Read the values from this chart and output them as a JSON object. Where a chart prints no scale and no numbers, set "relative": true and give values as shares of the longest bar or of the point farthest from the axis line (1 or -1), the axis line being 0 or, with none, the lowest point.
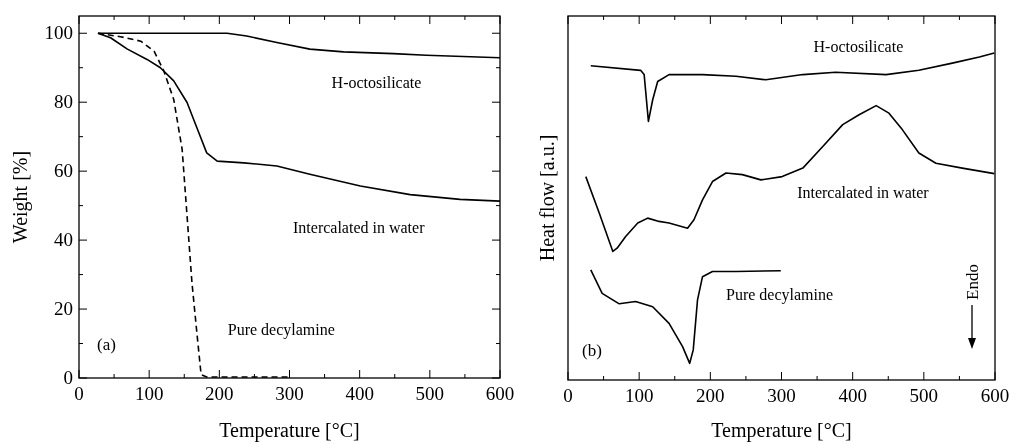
{
  "chart_data": [
    {
      "type": "line",
      "xlabel": "Temperature [°C]",
      "ylabel": "Weight [%]",
      "xlim": [
        0,
        600
      ],
      "ylim": [
        0,
        105
      ],
      "xticks": [
        0,
        {
          "value": 50,
          "label": null
        },
        100,
        {
          "value": 150,
          "label": null
        },
        200,
        {
          "value": 250,
          "label": null
        },
        300,
        {
          "value": 350,
          "label": null
        },
        400,
        {
          "value": 450,
          "label": null
        },
        500,
        {
          "value": 550,
          "label": null
        },
        600
      ],
      "yticks": [
        0,
        {
          "value": 10,
          "label": null
        },
        20,
        {
          "value": 30,
          "label": null
        },
        40,
        {
          "value": 50,
          "label": null
        },
        60,
        {
          "value": 70,
          "label": null
        },
        80,
        {
          "value": 90,
          "label": null
        },
        100
      ],
      "series": [
        {
          "name": "H-octosilicate",
          "color": "#000000",
          "x": [
            27,
            211,
            239,
            282,
            329,
            377,
            448,
            495,
            600
          ],
          "values": [
            100,
            100,
            99.2,
            97.3,
            95.4,
            94.6,
            94.1,
            93.6,
            92.9
          ]
        },
        {
          "name": "Intercalated in water",
          "color": "#000000",
          "x": [
            27,
            45,
            69,
            97,
            116,
            135,
            154,
            168,
            182,
            197,
            235,
            282,
            329,
            401,
            472,
            543,
            600
          ],
          "values": [
            100,
            98.7,
            95.4,
            92.4,
            90,
            86.2,
            79.9,
            72.6,
            65.3,
            62.9,
            62.4,
            61.5,
            59.1,
            55.7,
            53.2,
            51.8,
            51.3
          ]
        },
        {
          "name": "Pure decylamine",
          "color": "#000000",
          "line_style": "dashed",
          "x": [
            27,
            59,
            88,
            107,
            121,
            135,
            147,
            154,
            161,
            168,
            174,
            182,
            301
          ],
          "values": [
            100,
            99,
            97.7,
            94.8,
            89,
            80.8,
            66.3,
            47,
            27.6,
            13.1,
            1,
            0.3,
            0.3
          ]
        }
      ],
      "annotations": [
        "(a)"
      ]
    },
    {
      "type": "line",
      "xlabel": "Temperature [°C]",
      "ylabel": "Heat flow [a.u.]",
      "relative": true,
      "xlim": [
        0,
        600
      ],
      "xticks": [
        0,
        {
          "value": 50,
          "label": null
        },
        100,
        {
          "value": 150,
          "label": null
        },
        200,
        {
          "value": 250,
          "label": null
        },
        300,
        {
          "value": 350,
          "label": null
        },
        400,
        {
          "value": 450,
          "label": null
        },
        500,
        {
          "value": 550,
          "label": null
        },
        600
      ],
      "series": [
        {
          "name": "H-octosilicate",
          "color": "#000000",
          "x": [
            32,
            102,
            107,
            113,
            119,
            126,
            142,
            189,
            236,
            278,
            330,
            376,
            447,
            493,
            540,
            578,
            599
          ],
          "values": [
            0.961,
            0.947,
            0.934,
            0.791,
            0.857,
            0.913,
            0.934,
            0.934,
            0.929,
            0.918,
            0.934,
            0.941,
            0.934,
            0.947,
            0.969,
            0.988,
            1
          ]
        },
        {
          "name": "Intercalated in water",
          "color": "#000000",
          "x": [
            25,
            44,
            63,
            69,
            81,
            98,
            112,
            128,
            142,
            168,
            177,
            189,
            203,
            222,
            245,
            271,
            301,
            330,
            358,
            386,
            409,
            433,
            451,
            470,
            493,
            517,
            554,
            599
          ],
          "values": [
            0.622,
            0.51,
            0.393,
            0.403,
            0.439,
            0.48,
            0.495,
            0.485,
            0.48,
            0.464,
            0.49,
            0.551,
            0.607,
            0.633,
            0.628,
            0.612,
            0.622,
            0.648,
            0.714,
            0.781,
            0.811,
            0.839,
            0.816,
            0.765,
            0.694,
            0.663,
            0.648,
            0.631
          ]
        },
        {
          "name": "Pure decylamine",
          "color": "#000000",
          "x": [
            32,
            48,
            72,
            95,
            119,
            142,
            161,
            171,
            176,
            182,
            189,
            203,
            236,
            299
          ],
          "values": [
            0.337,
            0.265,
            0.233,
            0.24,
            0.224,
            0.173,
            0.102,
            0.051,
            0.092,
            0.245,
            0.316,
            0.332,
            0.332,
            0.334
          ]
        }
      ],
      "annotations": [
        "(b)",
        "Endo"
      ]
    }
  ]
}
